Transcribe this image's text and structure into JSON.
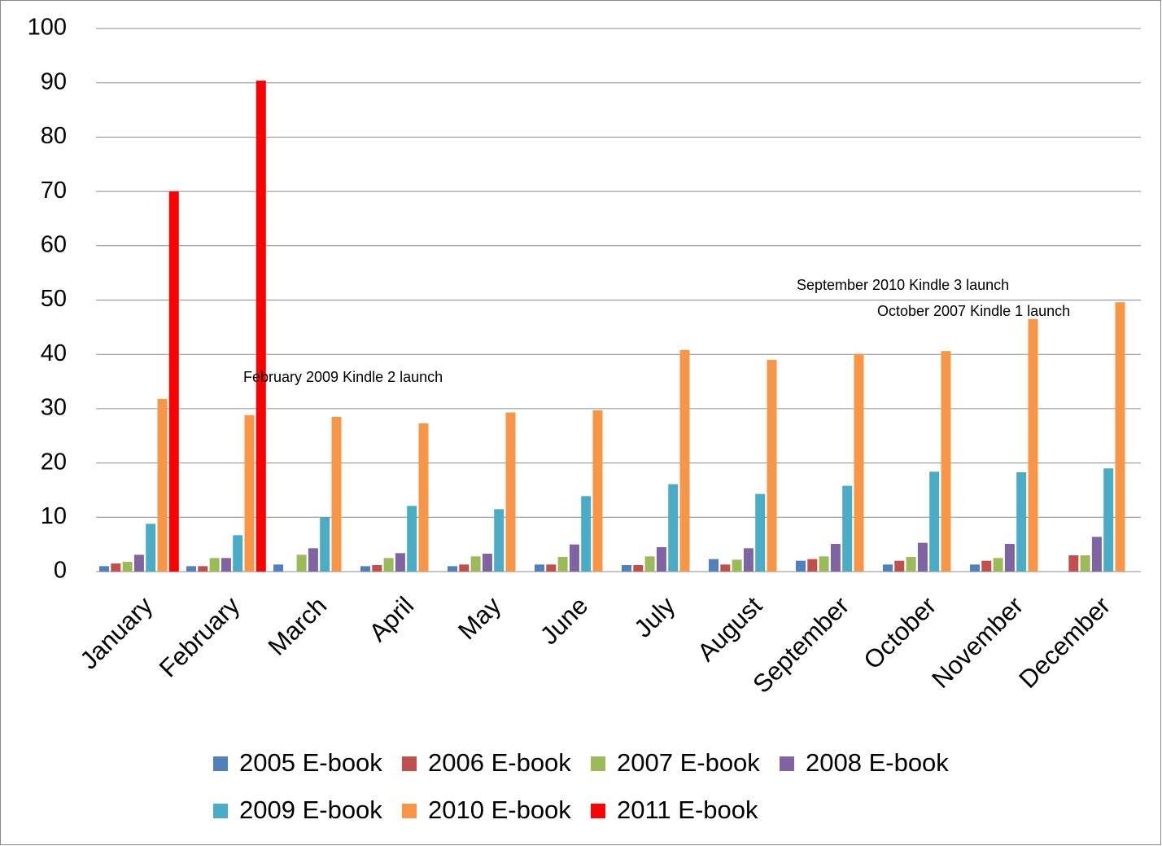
{
  "chart_data": {
    "type": "bar",
    "categories": [
      "January",
      "February",
      "March",
      "April",
      "May",
      "June",
      "July",
      "August",
      "September",
      "October",
      "November",
      "December"
    ],
    "series": [
      {
        "name": "2005 E-book",
        "color": "#4f81bd",
        "values": [
          1.0,
          1.0,
          1.3,
          1.0,
          1.0,
          1.3,
          1.2,
          2.3,
          2.0,
          1.3,
          1.3,
          null
        ]
      },
      {
        "name": "2006 E-book",
        "color": "#c0504d",
        "values": [
          1.5,
          1.0,
          null,
          1.2,
          1.3,
          1.3,
          1.2,
          1.3,
          2.3,
          2.0,
          2.0,
          3.0
        ]
      },
      {
        "name": "2007 E-book",
        "color": "#9bbb59",
        "values": [
          1.8,
          2.5,
          3.1,
          2.5,
          2.8,
          2.7,
          2.8,
          2.2,
          2.8,
          2.7,
          2.5,
          3.0
        ]
      },
      {
        "name": "2008 E-book",
        "color": "#8064a2",
        "values": [
          3.1,
          2.5,
          4.3,
          3.4,
          3.3,
          5.0,
          4.5,
          4.3,
          5.1,
          5.3,
          5.1,
          6.4
        ]
      },
      {
        "name": "2009 E-book",
        "color": "#4bacc6",
        "values": [
          8.8,
          6.7,
          10.0,
          12.1,
          11.5,
          13.9,
          16.1,
          14.3,
          15.8,
          18.4,
          18.3,
          19.0
        ]
      },
      {
        "name": "2010 E-book",
        "color": "#f79646",
        "values": [
          31.8,
          28.8,
          28.5,
          27.3,
          29.3,
          29.7,
          40.8,
          39.0,
          40.1,
          40.6,
          46.5,
          49.6
        ]
      },
      {
        "name": "2011 E-book",
        "color": "#ff0000",
        "values": [
          70.0,
          90.4,
          null,
          null,
          null,
          null,
          null,
          null,
          null,
          null,
          null,
          null
        ]
      }
    ],
    "annotations": [
      "February 2009 Kindle 2 launch",
      "September 2010 Kindle 3 launch",
      "October 2007 Kindle 1 launch"
    ],
    "ylim": [
      0,
      100
    ],
    "yticks": [
      0,
      10,
      20,
      30,
      40,
      50,
      60,
      70,
      80,
      90,
      100
    ],
    "grid": true,
    "legend": "bottom"
  }
}
